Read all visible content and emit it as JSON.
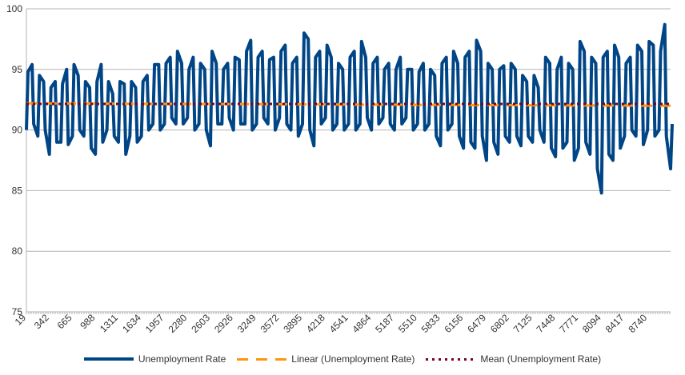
{
  "chart_data": {
    "type": "line",
    "title": "",
    "xlabel": "",
    "ylabel": "",
    "ylim": [
      75,
      100
    ],
    "y_ticks": [
      75,
      80,
      85,
      90,
      95,
      100
    ],
    "x_tick_labels": [
      "19",
      "342",
      "665",
      "988",
      "1311",
      "1634",
      "1957",
      "2280",
      "2603",
      "2926",
      "3249",
      "3572",
      "3895",
      "4218",
      "4541",
      "4864",
      "5187",
      "5510",
      "5833",
      "6156",
      "6479",
      "6802",
      "7125",
      "7448",
      "7771",
      "8094",
      "8417",
      "8740"
    ],
    "x_start": 19,
    "x_end": 9064,
    "grid": true,
    "legend_position": "bottom",
    "series": [
      {
        "name": "Unemployment Rate",
        "color": "#004586",
        "x": [
          19,
          99,
          180,
          261,
          342,
          423,
          503,
          584,
          665,
          746,
          826,
          907,
          988,
          1069,
          1149,
          1230,
          1311,
          1392,
          1472,
          1553,
          1634,
          1715,
          1795,
          1876,
          1957,
          2038,
          2118,
          2199,
          2280,
          2361,
          2441,
          2522,
          2603,
          2684,
          2764,
          2845,
          2926,
          3007,
          3087,
          3168,
          3249,
          3330,
          3410,
          3491,
          3572,
          3653,
          3733,
          3814,
          3895,
          3976,
          4056,
          4137,
          4218,
          4299,
          4379,
          4460,
          4541,
          4622,
          4702,
          4783,
          4864,
          4945,
          5025,
          5106,
          5187,
          5268,
          5348,
          5429,
          5510,
          5591,
          5671,
          5752,
          5833,
          5914,
          5994,
          6075,
          6156,
          6237,
          6317,
          6398,
          6479,
          6560,
          6640,
          6721,
          6802,
          6883,
          6963,
          7044,
          7125,
          7206,
          7286,
          7367,
          7448,
          7529,
          7609,
          7690,
          7771,
          7852,
          7932,
          8013,
          8094,
          8175,
          8255,
          8336,
          8417,
          8498,
          8578,
          8659,
          8740,
          8821,
          8901,
          8982,
          9064
        ],
        "low": [
          90.0,
          90.5,
          89.5,
          90.0,
          88.0,
          89.0,
          89.0,
          88.8,
          89.5,
          90.0,
          89.5,
          88.5,
          88.0,
          89.0,
          90.0,
          89.5,
          89.0,
          88.0,
          89.5,
          89.0,
          89.5,
          90.0,
          90.5,
          90.0,
          90.5,
          91.0,
          90.5,
          90.5,
          91.0,
          90.0,
          90.5,
          90.0,
          88.7,
          90.5,
          90.5,
          91.0,
          90.0,
          90.5,
          90.5,
          90.0,
          90.5,
          91.0,
          90.5,
          90.0,
          91.0,
          90.5,
          90.0,
          89.5,
          90.5,
          90.0,
          88.7,
          90.5,
          91.0,
          90.0,
          90.5,
          90.0,
          90.5,
          90.0,
          90.5,
          91.0,
          90.0,
          90.5,
          91.0,
          90.5,
          90.0,
          90.5,
          91.0,
          90.0,
          90.5,
          90.0,
          90.5,
          89.5,
          88.7,
          90.0,
          90.5,
          89.5,
          88.5,
          89.0,
          88.5,
          89.5,
          87.5,
          89.0,
          88.0,
          89.5,
          89.0,
          89.5,
          88.7,
          89.5,
          89.0,
          90.0,
          89.0,
          88.5,
          87.8,
          88.5,
          89.0,
          87.5,
          88.5,
          89.0,
          88.0,
          86.8,
          84.8,
          88.0,
          87.5,
          88.5,
          89.5,
          90.0,
          89.5,
          88.8,
          90.0,
          89.5,
          90.0,
          89.5,
          86.8
        ],
        "high": [
          94.8,
          95.4,
          94.5,
          94.0,
          93.5,
          94.0,
          93.8,
          95.0,
          95.4,
          94.5,
          94.0,
          93.5,
          94.0,
          95.4,
          94.0,
          93.0,
          94.0,
          93.8,
          94.0,
          93.5,
          94.0,
          94.5,
          95.4,
          95.4,
          95.5,
          96.0,
          96.5,
          95.5,
          95.0,
          96.0,
          95.5,
          95.0,
          96.5,
          95.5,
          95.0,
          95.5,
          96.0,
          95.8,
          96.5,
          97.4,
          96.0,
          96.5,
          95.8,
          96.0,
          96.5,
          97.0,
          95.5,
          96.0,
          98.0,
          97.5,
          96.0,
          96.5,
          97.0,
          96.0,
          95.5,
          95.0,
          96.0,
          96.5,
          97.3,
          96.0,
          95.5,
          96.0,
          95.0,
          95.5,
          95.0,
          96.0,
          95.0,
          95.0,
          94.8,
          95.5,
          95.0,
          94.5,
          95.5,
          96.0,
          96.5,
          95.5,
          96.0,
          96.5,
          97.4,
          96.5,
          95.5,
          95.0,
          95.0,
          95.3,
          95.5,
          95.0,
          94.5,
          94.0,
          94.5,
          93.5,
          96.0,
          95.5,
          95.0,
          96.0,
          95.5,
          95.0,
          97.3,
          96.5,
          96.0,
          95.5,
          96.0,
          96.5,
          97.0,
          96.0,
          95.5,
          96.0,
          97.0,
          96.5,
          97.3,
          97.0,
          96.5,
          98.7,
          90.5
        ]
      },
      {
        "name": "Linear (Unemployment Rate)",
        "color": "#ff950e",
        "x": [
          19,
          9064
        ],
        "y": [
          92.2,
          92.0
        ]
      },
      {
        "name": "Mean (Unemployment Rate)",
        "color": "#7e0021",
        "x": [
          19,
          9064
        ],
        "y": [
          92.15,
          92.15
        ]
      }
    ]
  }
}
